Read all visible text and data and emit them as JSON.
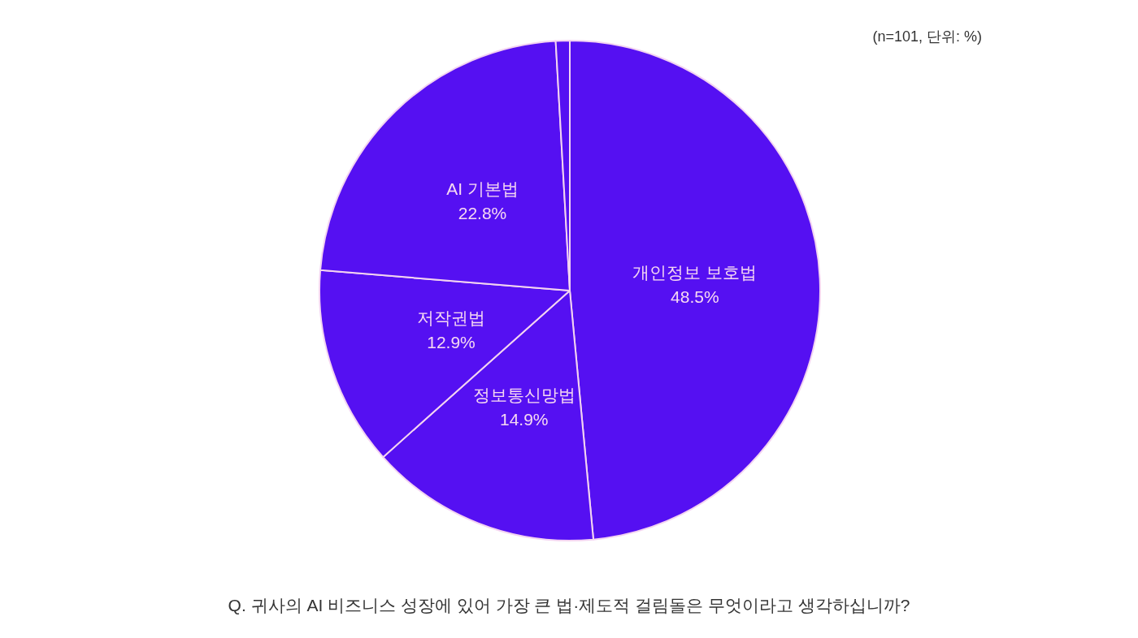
{
  "chart_data": {
    "type": "pie",
    "categories": [
      "개인정보 보호법",
      "정보통신망법",
      "저작권법",
      "AI 기본법",
      null
    ],
    "values": [
      48.5,
      14.9,
      12.9,
      22.8,
      0.9
    ],
    "value_labels": [
      "48.5%",
      "14.9%",
      "12.9%",
      "22.8%",
      null
    ],
    "colors": [
      "#5510f2",
      "#5510f2",
      "#5510f2",
      "#5510f2",
      "#5510f2"
    ],
    "annotations": [
      "(n=101, 단위: %)",
      "Q. 귀사의 AI 비즈니스 성장에 있어 가장 큰 법·제도적 걸림돌은 무엇이라고 생각하십니까?"
    ]
  }
}
